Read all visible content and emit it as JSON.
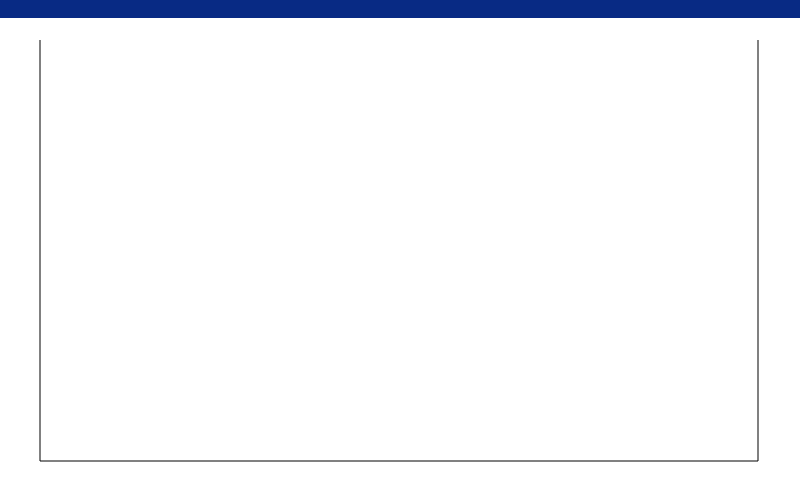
{
  "window": {
    "title": ""
  },
  "chart_data": {
    "type": "line",
    "title": "",
    "ylabel": "",
    "ylim": [],
    "yticks": [],
    "xticks": [],
    "series": [],
    "colors": {
      "series_1": "#0000cc",
      "series_2": "#aa1111",
      "title_bar": "#082a84",
      "grid": "#000000"
    },
    "grid": true
  }
}
